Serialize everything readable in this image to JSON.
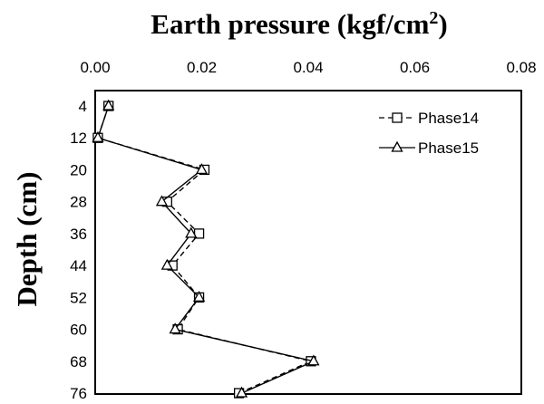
{
  "chart_data": {
    "type": "line",
    "title": "Earth pressure (kgf/cm",
    "title_superscript": "2",
    "title_suffix": ")",
    "xlabel": "Earth pressure (kgf/cm2)",
    "ylabel": "Depth (cm)",
    "x_axis_position": "top",
    "y_inverted": true,
    "xlim": [
      0.0,
      0.08
    ],
    "ylim": [
      4,
      76
    ],
    "x_ticks": [
      "0.00",
      "0.02",
      "0.04",
      "0.06",
      "0.08"
    ],
    "y_ticks": [
      "4",
      "12",
      "20",
      "28",
      "36",
      "44",
      "52",
      "60",
      "68",
      "76"
    ],
    "grid": false,
    "legend_position": "top-right",
    "series": [
      {
        "name": "Phase14",
        "marker": "square",
        "line_style": "dashed",
        "color": "#000000",
        "points": [
          {
            "depth": 4,
            "pressure": 0.0025
          },
          {
            "depth": 12,
            "pressure": 0.0005
          },
          {
            "depth": 20,
            "pressure": 0.0205
          },
          {
            "depth": 28,
            "pressure": 0.0135
          },
          {
            "depth": 36,
            "pressure": 0.0195
          },
          {
            "depth": 44,
            "pressure": 0.0145
          },
          {
            "depth": 52,
            "pressure": 0.0195
          },
          {
            "depth": 60,
            "pressure": 0.0155
          },
          {
            "depth": 68,
            "pressure": 0.0405
          },
          {
            "depth": 76,
            "pressure": 0.027
          }
        ]
      },
      {
        "name": "Phase15",
        "marker": "triangle",
        "line_style": "solid",
        "color": "#000000",
        "points": [
          {
            "depth": 4,
            "pressure": 0.0025
          },
          {
            "depth": 12,
            "pressure": 0.0005
          },
          {
            "depth": 20,
            "pressure": 0.02
          },
          {
            "depth": 28,
            "pressure": 0.0125
          },
          {
            "depth": 36,
            "pressure": 0.018
          },
          {
            "depth": 44,
            "pressure": 0.0135
          },
          {
            "depth": 52,
            "pressure": 0.0195
          },
          {
            "depth": 60,
            "pressure": 0.015
          },
          {
            "depth": 68,
            "pressure": 0.041
          },
          {
            "depth": 76,
            "pressure": 0.0275
          }
        ]
      }
    ]
  }
}
